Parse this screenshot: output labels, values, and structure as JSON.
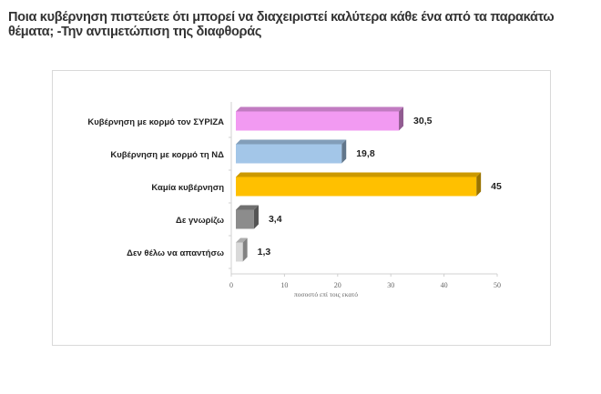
{
  "title": "Ποια κυβέρνηση  πιστεύετε ότι μπορεί να διαχειριστεί καλύτερα κάθε ένα από τα παρακάτω θέματα; -Την αντιμετώπιση της διαφθοράς",
  "chart_data": {
    "type": "bar",
    "orientation": "horizontal",
    "title": "Ποια κυβέρνηση  πιστεύετε ότι μπορεί να διαχειριστεί καλύτερα κάθε ένα από τα παρακάτω θέματα; -Την αντιμετώπιση της διαφθοράς",
    "categories": [
      "Κυβέρνηση με κορμό τον ΣΥΡΙΖΑ",
      "Κυβέρνηση με κορμό τη ΝΔ",
      "Καμία κυβέρνηση",
      "Δε γνωρίζω",
      "Δεν θέλω να απαντήσω"
    ],
    "values": [
      30.5,
      19.8,
      45,
      3.4,
      1.3
    ],
    "value_labels": [
      "30,5",
      "19,8",
      "45",
      "3,4",
      "1,3"
    ],
    "colors": [
      "#f29af2",
      "#a3c6e8",
      "#ffc000",
      "#8c8c8c",
      "#d9d9d9"
    ],
    "xlabel": "ποσοστό επί τοις εκατό",
    "xlim": [
      0,
      50
    ],
    "xticks": [
      "0",
      "10",
      "20",
      "30",
      "40",
      "50"
    ],
    "grid": false
  }
}
